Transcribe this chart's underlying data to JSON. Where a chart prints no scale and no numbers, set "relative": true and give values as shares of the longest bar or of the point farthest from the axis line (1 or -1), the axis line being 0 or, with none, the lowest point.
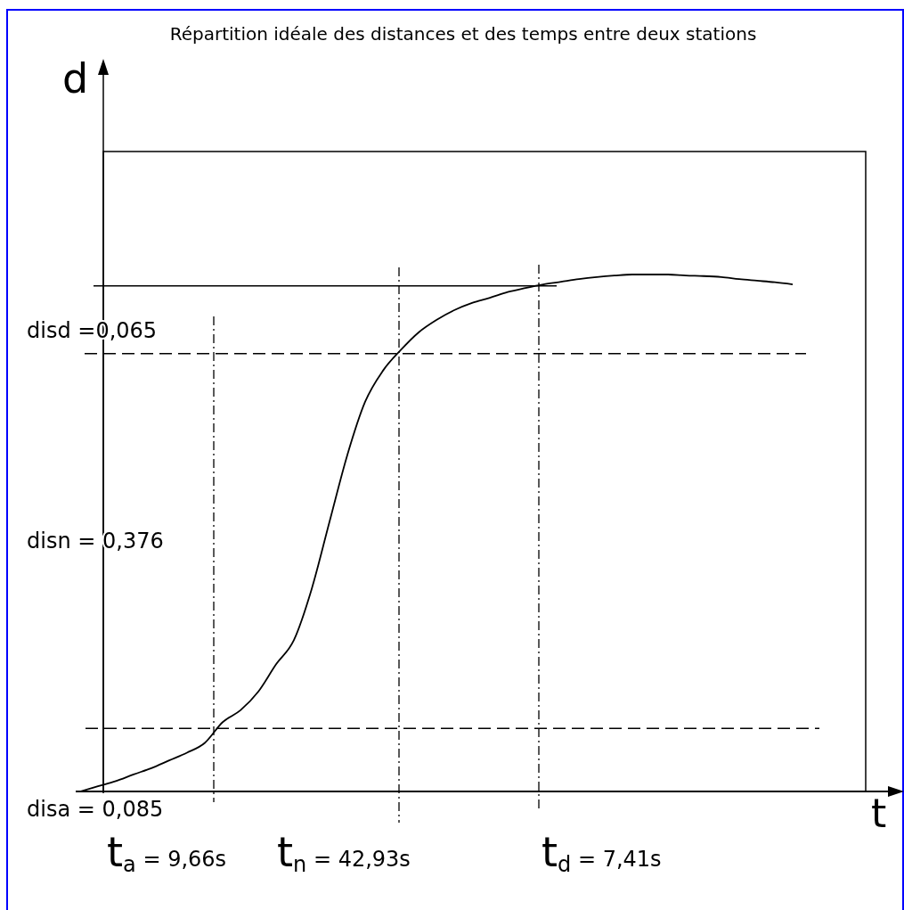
{
  "chart_data": {
    "type": "line",
    "title": "Répartition idéale des distances et des temps entre deux stations",
    "xlabel": "t",
    "relative": true,
    "categories": [
      null,
      null,
      null,
      null,
      null,
      null,
      null,
      null,
      null,
      null,
      null,
      null,
      null,
      null,
      null,
      null,
      null,
      null,
      null,
      null,
      null,
      null,
      null,
      null,
      null,
      null,
      null,
      null,
      null,
      null,
      null,
      null,
      null,
      null,
      null,
      null,
      null,
      null,
      null,
      null,
      null
    ],
    "series": [
      {
        "color": "#000000",
        "values": [
          0,
          0.01,
          0.02,
          0.033,
          0.045,
          0.06,
          0.075,
          0.094,
          0.134,
          0.157,
          0.193,
          0.246,
          0.293,
          0.392,
          0.522,
          0.651,
          0.754,
          0.814,
          0.854,
          0.888,
          0.912,
          0.931,
          0.945,
          0.955,
          0.966,
          0.974,
          0.981,
          0.986,
          0.991,
          0.995,
          0.998,
          1,
          1,
          1,
          0.998,
          0.997,
          0.995,
          0.991,
          0.988,
          0.985,
          0.981
        ]
      }
    ],
    "ref_lines": [
      {
        "axis": "y",
        "value": 0.122,
        "line_style": "dashed",
        "color": "#000000"
      },
      {
        "axis": "y",
        "value": 0.847,
        "line_style": "dashed",
        "color": "#000000"
      },
      {
        "axis": "y",
        "value": 0.978,
        "line_style": "solid",
        "color": "#000000"
      }
    ],
    "annotations": [
      "d",
      "disd =0,065",
      "disn = 0,376",
      "disa = 0,085",
      "t$_{a}$ = 9,66s",
      "t$_{n}$ = 42,93s",
      "t$_{d}$ = 7,41s"
    ],
    "marker": "none",
    "line_style": "solid"
  }
}
